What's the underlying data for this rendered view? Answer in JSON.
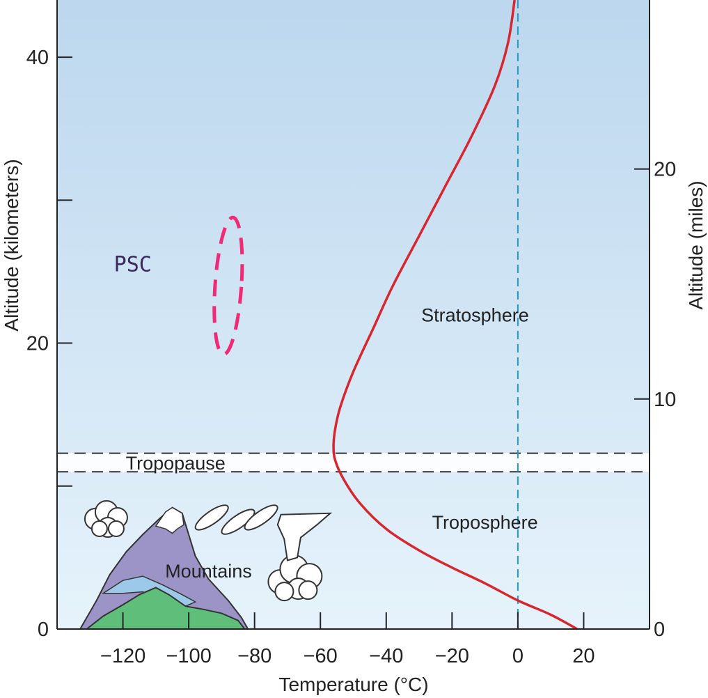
{
  "chart_data": {
    "type": "line",
    "xlabel": "Temperature (°C)",
    "ylabel_left": "Altitude (kilometers)",
    "ylabel_right": "Altitude (miles)",
    "xlim": [
      -140,
      40
    ],
    "ylim_km": [
      0,
      44
    ],
    "x_ticks": [
      -120,
      -100,
      -80,
      -60,
      -40,
      -20,
      0,
      20
    ],
    "x_tick_labels": [
      "−120",
      "−100",
      "−80",
      "−60",
      "−40",
      "−20",
      "0",
      "20"
    ],
    "y_left_ticks": [
      0,
      10,
      20,
      30,
      40
    ],
    "y_left_tick_labels": [
      "0",
      "",
      "20",
      "",
      "40"
    ],
    "y_right_ticks_miles": [
      0,
      10,
      20
    ],
    "y_right_tick_labels": [
      "0",
      "10",
      "20"
    ],
    "km_per_mile": 1.609,
    "grid": false,
    "series": [
      {
        "color": "#d8262e",
        "x": [
          18,
          10,
          0,
          -10,
          -20,
          -30,
          -40,
          -48,
          -53,
          -55.5,
          -56,
          -55.5,
          -54,
          -50,
          -44,
          -38,
          -30,
          -22,
          -14,
          -7,
          -3,
          -1
        ],
        "y": [
          0,
          1,
          2,
          3.2,
          4.3,
          5.5,
          7,
          8.8,
          10.5,
          11.8,
          12.8,
          14,
          15.5,
          18,
          21,
          24,
          27.5,
          31,
          34.5,
          38,
          41,
          44
        ]
      }
    ],
    "reference_line": {
      "x": 0,
      "color": "#1f9bc4"
    },
    "tropopause_band_km": [
      11,
      12.3
    ],
    "annotations": [
      {
        "text": "Tropopause",
        "x": -104,
        "y": 11.65
      },
      {
        "text": "Stratosphere",
        "x": -13,
        "y": 22
      },
      {
        "text": "Troposphere",
        "x": -10,
        "y": 7.5
      },
      {
        "text": "Mountains",
        "x": -94,
        "y": 4.1
      },
      {
        "text": "PSC",
        "x": -117,
        "y": 25.5
      }
    ],
    "psc_region": {
      "x_center": -88,
      "y_center": 24,
      "x_half_width": 4,
      "y_half_height": 4.8,
      "color": "#ef2b77"
    },
    "colors": {
      "sky_top": "#bcd7ee",
      "sky_bottom": "#e6f3fb",
      "mountain_purple": "#9c93c6",
      "mountain_green": "#5fbf7a",
      "mountain_blue": "#9cc8ea",
      "cloud_fill": "#ffffff",
      "cloud_stroke": "#333333"
    }
  }
}
